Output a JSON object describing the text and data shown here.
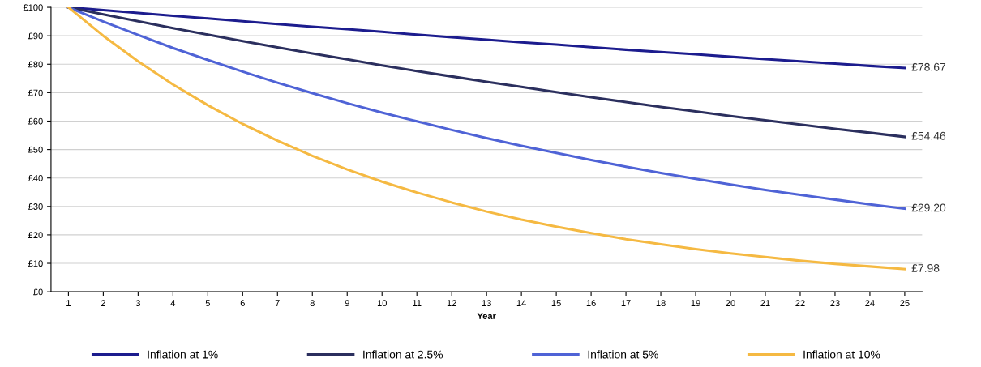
{
  "chart_data": {
    "type": "line",
    "xlabel": "Year",
    "categories": [
      "1",
      "2",
      "3",
      "4",
      "5",
      "6",
      "7",
      "8",
      "9",
      "10",
      "11",
      "12",
      "13",
      "14",
      "15",
      "16",
      "17",
      "18",
      "19",
      "20",
      "21",
      "22",
      "23",
      "24",
      "25"
    ],
    "series": [
      {
        "name": "Inflation at 1%",
        "color": "#1c1c8e",
        "values": [
          100,
          99.0,
          98.0,
          97.0,
          96.1,
          95.1,
          94.1,
          93.2,
          92.3,
          91.4,
          90.4,
          89.5,
          88.6,
          87.7,
          86.9,
          86.0,
          85.1,
          84.3,
          83.5,
          82.6,
          81.8,
          81.0,
          80.2,
          79.4,
          78.67
        ],
        "value_labels": [
          null,
          null,
          null,
          null,
          null,
          null,
          null,
          null,
          null,
          null,
          null,
          null,
          null,
          null,
          null,
          null,
          null,
          null,
          null,
          null,
          null,
          null,
          null,
          null,
          "£78.67"
        ]
      },
      {
        "name": "Inflation at 2.5%",
        "color": "#2b2f5e",
        "values": [
          100,
          97.5,
          95.1,
          92.7,
          90.4,
          88.1,
          85.9,
          83.8,
          81.7,
          79.6,
          77.6,
          75.7,
          73.8,
          72.0,
          70.2,
          68.4,
          66.7,
          65.0,
          63.4,
          61.8,
          60.3,
          58.8,
          57.3,
          55.9,
          54.46
        ],
        "value_labels": [
          null,
          null,
          null,
          null,
          null,
          null,
          null,
          null,
          null,
          null,
          null,
          null,
          null,
          null,
          null,
          null,
          null,
          null,
          null,
          null,
          null,
          null,
          null,
          null,
          "£54.46"
        ]
      },
      {
        "name": "Inflation at 5%",
        "color": "#4f63d6",
        "values": [
          100,
          95.0,
          90.3,
          85.7,
          81.5,
          77.4,
          73.5,
          69.8,
          66.3,
          63.0,
          59.9,
          56.9,
          54.0,
          51.3,
          48.8,
          46.3,
          44.0,
          41.8,
          39.7,
          37.7,
          35.8,
          34.1,
          32.4,
          30.7,
          29.2
        ],
        "value_labels": [
          null,
          null,
          null,
          null,
          null,
          null,
          null,
          null,
          null,
          null,
          null,
          null,
          null,
          null,
          null,
          null,
          null,
          null,
          null,
          null,
          null,
          null,
          null,
          null,
          "£29.20"
        ]
      },
      {
        "name": "Inflation at 10%",
        "color": "#f5b942",
        "values": [
          100,
          90.0,
          81.0,
          72.9,
          65.6,
          59.0,
          53.1,
          47.8,
          43.0,
          38.7,
          34.9,
          31.4,
          28.2,
          25.4,
          22.9,
          20.6,
          18.5,
          16.7,
          15.0,
          13.5,
          12.2,
          10.9,
          9.8,
          8.9,
          7.98
        ],
        "value_labels": [
          null,
          null,
          null,
          null,
          null,
          null,
          null,
          null,
          null,
          null,
          null,
          null,
          null,
          null,
          null,
          null,
          null,
          null,
          null,
          null,
          null,
          null,
          null,
          null,
          "£7.98"
        ]
      }
    ],
    "ylim": [
      0,
      100
    ],
    "yticks": [
      {
        "value": 0,
        "label": "£0"
      },
      {
        "value": 10,
        "label": "£10"
      },
      {
        "value": 20,
        "label": "£20"
      },
      {
        "value": 30,
        "label": "£30"
      },
      {
        "value": 40,
        "label": "£40"
      },
      {
        "value": 50,
        "label": "£50"
      },
      {
        "value": 60,
        "label": "£60"
      },
      {
        "value": 70,
        "label": "£70"
      },
      {
        "value": 80,
        "label": "£80"
      },
      {
        "value": 90,
        "label": "£90"
      },
      {
        "value": 100,
        "label": "£100"
      }
    ],
    "grid": "y",
    "legend": "bottom",
    "marker": "none",
    "line_style": "solid"
  }
}
